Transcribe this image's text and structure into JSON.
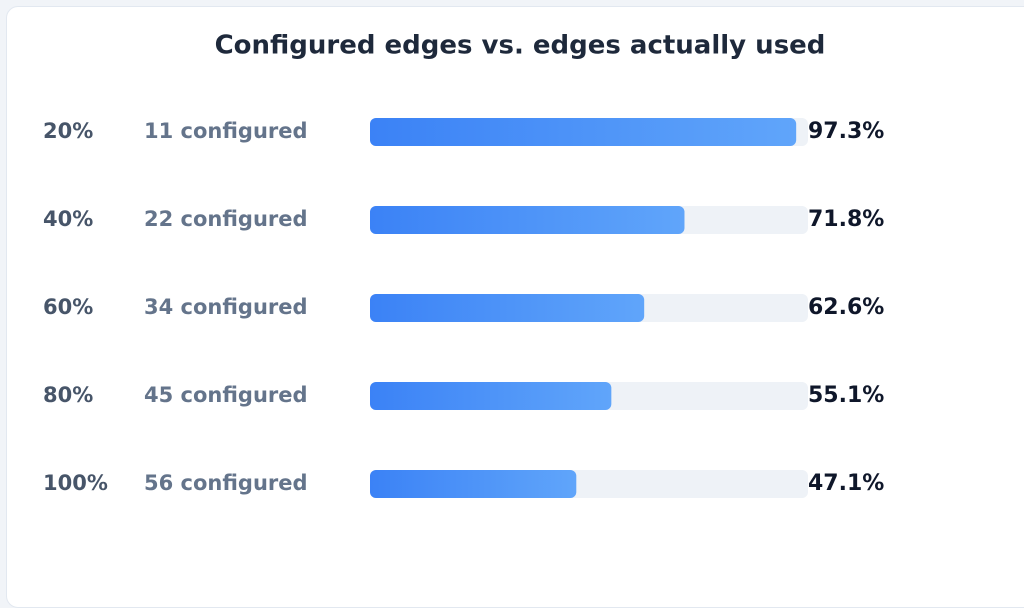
{
  "chart_data": {
    "type": "hbar",
    "title": "Configured edges vs. edges actually used",
    "categories": [
      "20%",
      "40%",
      "60%",
      "80%",
      "100%"
    ],
    "sublabels": [
      "11 configured",
      "22 configured",
      "34 configured",
      "45 configured",
      "56 configured"
    ],
    "values": [
      97.3,
      71.8,
      62.6,
      55.1,
      47.1
    ],
    "value_labels": [
      "97.3%",
      "71.8%",
      "62.6%",
      "55.1%",
      "47.1%"
    ],
    "xlim": [
      0,
      100
    ],
    "color": "#3b82f6"
  }
}
